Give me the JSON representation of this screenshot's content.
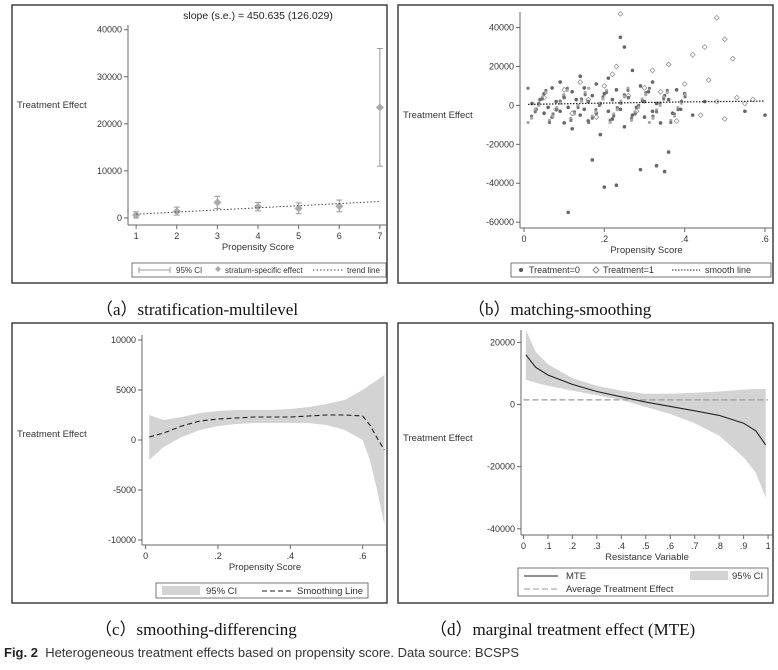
{
  "captions": {
    "a": "（a）stratification-multilevel",
    "b": "（b）matching-smoothing",
    "c": "（c）smoothing-differencing",
    "d": "（d）marginal treatment effect (MTE)"
  },
  "figure": {
    "label": "Fig. 2",
    "text": "Heterogeneous treatment effects based on propensity score. Data source: BCSPS"
  },
  "colors": {
    "gray": "#999999",
    "band": "#d3d3d3",
    "ink": "#333333",
    "frame": "#333333"
  },
  "chart_data": [
    {
      "type": "scatter",
      "id": "a",
      "title": "slope (s.e.) = 450.635 (126.029)",
      "xlabel": "Propensity Score",
      "ylabel": "Treatment Effect",
      "xlim": [
        0.8,
        7.2
      ],
      "ylim": [
        -1500,
        41000
      ],
      "xticks": [
        1,
        2,
        3,
        4,
        5,
        6,
        7
      ],
      "yticks": [
        0,
        10000,
        20000,
        30000,
        40000
      ],
      "series": [
        {
          "name": "stratum-specific effect",
          "points": [
            {
              "x": 1,
              "y": 600,
              "lo": 0,
              "hi": 1300
            },
            {
              "x": 2,
              "y": 1400,
              "lo": 600,
              "hi": 2300
            },
            {
              "x": 3,
              "y": 3300,
              "lo": 2000,
              "hi": 4600
            },
            {
              "x": 4,
              "y": 2400,
              "lo": 1500,
              "hi": 3300
            },
            {
              "x": 5,
              "y": 2000,
              "lo": 900,
              "hi": 3200
            },
            {
              "x": 6,
              "y": 2500,
              "lo": 1300,
              "hi": 3800
            },
            {
              "x": 7,
              "y": 23500,
              "lo": 11000,
              "hi": 36000
            }
          ]
        },
        {
          "name": "trend line",
          "x": [
            1,
            7
          ],
          "y": [
            800,
            3500
          ]
        }
      ],
      "legend": {
        "position": "bottom",
        "items": [
          "95% CI",
          "stratum-specific effect",
          "trend line"
        ]
      },
      "grid": false
    },
    {
      "type": "scatter",
      "id": "b",
      "xlabel": "Propensity Score",
      "ylabel": "Treatment Effect",
      "xlim": [
        -0.01,
        0.62
      ],
      "ylim": [
        -63000,
        48000
      ],
      "xticks": [
        0,
        0.2,
        0.4,
        0.6
      ],
      "xtick_labels": [
        "0",
        ".2",
        ".4",
        ".6"
      ],
      "yticks": [
        -60000,
        -40000,
        -20000,
        0,
        20000,
        40000
      ],
      "series": [
        {
          "name": "Treatment=0",
          "points": [
            [
              0.02,
              1000
            ],
            [
              0.03,
              -2000
            ],
            [
              0.04,
              3000
            ],
            [
              0.05,
              -4000
            ],
            [
              0.05,
              6000
            ],
            [
              0.06,
              -1000
            ],
            [
              0.07,
              9000
            ],
            [
              0.07,
              -6000
            ],
            [
              0.08,
              2000
            ],
            [
              0.09,
              -3000
            ],
            [
              0.09,
              12000
            ],
            [
              0.1,
              -9000
            ],
            [
              0.1,
              4000
            ],
            [
              0.11,
              -55000
            ],
            [
              0.11,
              -1000
            ],
            [
              0.12,
              7000
            ],
            [
              0.12,
              -12000
            ],
            [
              0.13,
              3000
            ],
            [
              0.14,
              -5000
            ],
            [
              0.14,
              15000
            ],
            [
              0.15,
              -2000
            ],
            [
              0.15,
              9000
            ],
            [
              0.16,
              -8000
            ],
            [
              0.16,
              2000
            ],
            [
              0.17,
              -28000
            ],
            [
              0.17,
              5000
            ],
            [
              0.18,
              -4000
            ],
            [
              0.18,
              11000
            ],
            [
              0.19,
              -15000
            ],
            [
              0.19,
              1000
            ],
            [
              0.2,
              -42000
            ],
            [
              0.2,
              6000
            ],
            [
              0.21,
              -3000
            ],
            [
              0.21,
              14000
            ],
            [
              0.22,
              -7000
            ],
            [
              0.22,
              3000
            ],
            [
              0.23,
              -41000
            ],
            [
              0.23,
              8000
            ],
            [
              0.24,
              35000
            ],
            [
              0.24,
              -2000
            ],
            [
              0.25,
              30000
            ],
            [
              0.25,
              -11000
            ],
            [
              0.26,
              4000
            ],
            [
              0.27,
              -5000
            ],
            [
              0.27,
              18000
            ],
            [
              0.28,
              -1000
            ],
            [
              0.29,
              10000
            ],
            [
              0.29,
              -33000
            ],
            [
              0.3,
              2000
            ],
            [
              0.3,
              -6000
            ],
            [
              0.31,
              7000
            ],
            [
              0.32,
              -3000
            ],
            [
              0.32,
              12000
            ],
            [
              0.33,
              -31000
            ],
            [
              0.33,
              1000
            ],
            [
              0.34,
              -9000
            ],
            [
              0.35,
              5000
            ],
            [
              0.35,
              -34000
            ],
            [
              0.36,
              -24000
            ],
            [
              0.36,
              3000
            ],
            [
              0.37,
              -4000
            ],
            [
              0.38,
              8000
            ],
            [
              0.39,
              -2000
            ],
            [
              0.4,
              6000
            ],
            [
              0.42,
              -5000
            ],
            [
              0.45,
              2000
            ],
            [
              0.55,
              -3000
            ],
            [
              0.6,
              -5000
            ]
          ]
        },
        {
          "name": "Treatment=1",
          "points": [
            [
              0.05,
              4000
            ],
            [
              0.08,
              -2000
            ],
            [
              0.1,
              8000
            ],
            [
              0.12,
              -4000
            ],
            [
              0.14,
              12000
            ],
            [
              0.16,
              3000
            ],
            [
              0.18,
              -6000
            ],
            [
              0.2,
              10000
            ],
            [
              0.22,
              16000
            ],
            [
              0.23,
              20000
            ],
            [
              0.24,
              47000
            ],
            [
              0.26,
              5000
            ],
            [
              0.28,
              -3000
            ],
            [
              0.3,
              9000
            ],
            [
              0.32,
              18000
            ],
            [
              0.34,
              7000
            ],
            [
              0.36,
              21000
            ],
            [
              0.38,
              -8000
            ],
            [
              0.4,
              11000
            ],
            [
              0.42,
              26000
            ],
            [
              0.44,
              -5000
            ],
            [
              0.45,
              30000
            ],
            [
              0.46,
              13000
            ],
            [
              0.48,
              2000
            ],
            [
              0.5,
              -7000
            ],
            [
              0.52,
              24000
            ],
            [
              0.53,
              4000
            ],
            [
              0.55,
              1000
            ],
            [
              0.57,
              3000
            ],
            [
              0.48,
              45000
            ],
            [
              0.5,
              34000
            ]
          ]
        },
        {
          "name": "smooth line",
          "x": [
            0.01,
            0.1,
            0.2,
            0.3,
            0.4,
            0.5,
            0.6
          ],
          "y": [
            500,
            800,
            1200,
            1500,
            1800,
            2000,
            2200
          ]
        }
      ],
      "legend": {
        "position": "bottom",
        "items": [
          "Treatment=0",
          "Treatment=1",
          "smooth line"
        ]
      },
      "grid": false
    },
    {
      "type": "line",
      "id": "c",
      "xlabel": "Propensity Score",
      "ylabel": "Treatment Effect",
      "xlim": [
        -0.01,
        0.67
      ],
      "ylim": [
        -10500,
        10500
      ],
      "xticks": [
        0,
        0.2,
        0.4,
        0.6
      ],
      "xtick_labels": [
        "0",
        ".2",
        ".4",
        ".6"
      ],
      "yticks": [
        -10000,
        -5000,
        0,
        5000,
        10000
      ],
      "ytick_labels": [
        "-10000",
        "-5000",
        "0",
        "5000",
        "10000"
      ],
      "series": [
        {
          "name": "Smoothing Line",
          "x": [
            0.01,
            0.05,
            0.1,
            0.15,
            0.2,
            0.25,
            0.3,
            0.35,
            0.4,
            0.45,
            0.5,
            0.55,
            0.6,
            0.62,
            0.64,
            0.66
          ],
          "y": [
            300,
            700,
            1400,
            1900,
            2100,
            2200,
            2300,
            2300,
            2300,
            2400,
            2500,
            2500,
            2400,
            1500,
            200,
            -1000
          ]
        },
        {
          "name": "95% CI",
          "x": [
            0.01,
            0.05,
            0.1,
            0.15,
            0.2,
            0.25,
            0.3,
            0.35,
            0.4,
            0.45,
            0.5,
            0.55,
            0.6,
            0.62,
            0.64,
            0.66
          ],
          "lo": [
            -2000,
            -700,
            300,
            1000,
            1400,
            1600,
            1700,
            1700,
            1700,
            1700,
            1500,
            1000,
            0,
            -2000,
            -5000,
            -8500
          ],
          "hi": [
            2500,
            2000,
            2300,
            2700,
            2900,
            3000,
            3000,
            3000,
            3100,
            3300,
            3600,
            4000,
            5000,
            5500,
            6000,
            6500
          ]
        }
      ],
      "legend": {
        "position": "bottom",
        "items": [
          "95% CI",
          "Smoothing Line"
        ]
      },
      "grid": false
    },
    {
      "type": "line",
      "id": "d",
      "xlabel": "Resistance Variable",
      "ylabel": "Treatment Effect",
      "xlim": [
        -0.01,
        1.02
      ],
      "ylim": [
        -42000,
        24000
      ],
      "xticks": [
        0,
        0.1,
        0.2,
        0.3,
        0.4,
        0.5,
        0.6,
        0.7,
        0.8,
        0.9,
        1
      ],
      "xtick_labels": [
        "0",
        ".1",
        ".2",
        ".3",
        ".4",
        ".5",
        ".6",
        ".7",
        ".8",
        ".9",
        "1"
      ],
      "yticks": [
        -40000,
        -20000,
        0,
        20000
      ],
      "series": [
        {
          "name": "MTE",
          "x": [
            0.01,
            0.05,
            0.1,
            0.2,
            0.3,
            0.4,
            0.5,
            0.6,
            0.7,
            0.8,
            0.9,
            0.95,
            0.99
          ],
          "y": [
            16000,
            12000,
            9500,
            6500,
            4200,
            2500,
            800,
            -600,
            -2000,
            -3500,
            -6000,
            -8500,
            -13000
          ]
        },
        {
          "name": "95% CI",
          "x": [
            0.01,
            0.05,
            0.1,
            0.2,
            0.3,
            0.4,
            0.5,
            0.6,
            0.7,
            0.8,
            0.9,
            0.95,
            0.99
          ],
          "lo": [
            8000,
            7000,
            6000,
            4500,
            3000,
            1500,
            -800,
            -3000,
            -6000,
            -10000,
            -17000,
            -22000,
            -30000
          ],
          "hi": [
            24000,
            17000,
            13000,
            8500,
            6000,
            4500,
            3500,
            3500,
            3800,
            4200,
            4800,
            5000,
            5000
          ]
        },
        {
          "name": "Average Treatment Effect",
          "x": [
            0,
            1
          ],
          "y": [
            1500,
            1500
          ]
        }
      ],
      "legend": {
        "position": "bottom",
        "items": [
          "MTE",
          "95% CI",
          "Average Treatment Effect"
        ]
      },
      "grid": false
    }
  ]
}
